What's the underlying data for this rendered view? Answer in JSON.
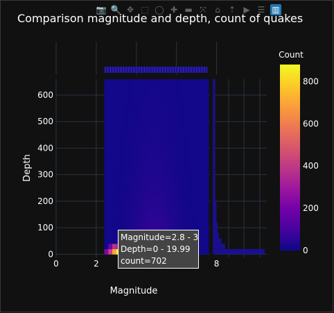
{
  "chart_data": {
    "type": "heatmap",
    "title": "Comparison magnitude and depth, count of quakes",
    "xlabel": "Magnitude",
    "ylabel": "Depth",
    "x_ticks": [
      "0",
      "2",
      "4",
      "6",
      "8"
    ],
    "y_ticks": [
      "0",
      "100",
      "200",
      "300",
      "400",
      "500",
      "600"
    ],
    "xlim": [
      0,
      10.5
    ],
    "ylim": [
      -12,
      660
    ],
    "bins": {
      "magnitude": {
        "start": 2.4,
        "end": 7.6,
        "size": 0.2
      },
      "depth": {
        "start": 0,
        "end": 660,
        "size": 20
      }
    },
    "hot_cells": [
      {
        "magnitude": [
          2.8,
          3.0
        ],
        "depth": [
          0,
          19.99
        ],
        "count": 702
      },
      {
        "magnitude": [
          3.0,
          3.2
        ],
        "depth": [
          0,
          19.99
        ],
        "count": 880
      },
      {
        "magnitude": [
          2.6,
          2.8
        ],
        "depth": [
          0,
          19.99
        ],
        "count": 420
      },
      {
        "magnitude": [
          3.2,
          3.4
        ],
        "depth": [
          0,
          19.99
        ],
        "count": 520
      },
      {
        "magnitude": [
          3.4,
          3.6
        ],
        "depth": [
          0,
          19.99
        ],
        "count": 280
      },
      {
        "magnitude": [
          2.4,
          2.6
        ],
        "depth": [
          0,
          19.99
        ],
        "count": 220
      },
      {
        "magnitude": [
          3.6,
          3.8
        ],
        "depth": [
          0,
          19.99
        ],
        "count": 160
      },
      {
        "magnitude": [
          2.8,
          3.0
        ],
        "depth": [
          20,
          39.99
        ],
        "count": 380
      },
      {
        "magnitude": [
          3.0,
          3.2
        ],
        "depth": [
          20,
          39.99
        ],
        "count": 300
      },
      {
        "magnitude": [
          3.2,
          3.4
        ],
        "depth": [
          20,
          39.99
        ],
        "count": 230
      },
      {
        "magnitude": [
          2.6,
          2.8
        ],
        "depth": [
          20,
          39.99
        ],
        "count": 200
      }
    ],
    "colorbar": {
      "title": "Count",
      "ticks": [
        "0",
        "200",
        "400",
        "600",
        "800"
      ],
      "min": 0,
      "max": 880
    },
    "colorscale": [
      "#0d0887",
      "#46039f",
      "#7201a8",
      "#9c179e",
      "#bd3786",
      "#d8576b",
      "#ed7953",
      "#fb9f3a",
      "#fdca26",
      "#f0f921"
    ],
    "marginal": {
      "top": "magnitude rug",
      "right": "depth histogram"
    },
    "grid": true
  },
  "tooltip": {
    "line1": "Magnitude=2.8 - 3",
    "line2": "Depth=0 - 19.99",
    "line3": "count=702"
  },
  "modebar": {
    "icons": [
      "camera-icon",
      "zoom-icon",
      "pan-icon",
      "box-select-icon",
      "lasso-icon",
      "zoom-in-icon",
      "zoom-out-icon",
      "autoscale-icon",
      "home-icon",
      "spike-icon",
      "hover-closest-icon",
      "hover-compare-icon",
      "plotly-logo-icon"
    ],
    "glyphs": [
      "📷",
      "🔍",
      "✥",
      "⬚",
      "◯",
      "✚",
      "▬",
      "⤧",
      "⌂",
      "⇡",
      "▶",
      "☰",
      "▥"
    ]
  }
}
